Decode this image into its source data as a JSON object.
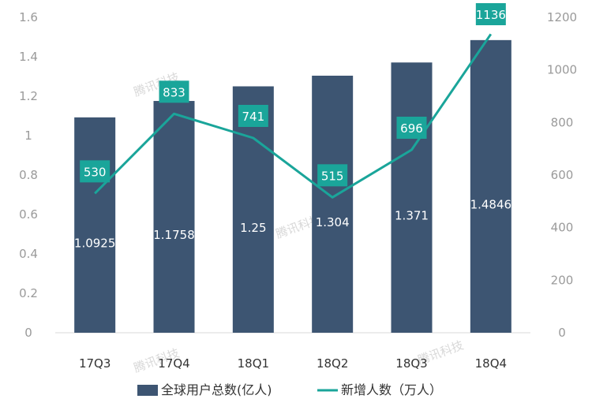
{
  "chart_data": {
    "type": "bar",
    "categories": [
      "17Q3",
      "17Q4",
      "18Q1",
      "18Q2",
      "18Q3",
      "18Q4"
    ],
    "series": [
      {
        "name": "全球用户总数(亿人)",
        "type": "bar",
        "axis": "left",
        "values": [
          1.0925,
          1.1758,
          1.25,
          1.304,
          1.371,
          1.4846
        ],
        "labels": [
          "1.0925",
          "1.1758",
          "1.25",
          "1.304",
          "1.371",
          "1.4846"
        ]
      },
      {
        "name": "新增人数（万人）",
        "type": "line",
        "axis": "right",
        "values": [
          530,
          833,
          741,
          515,
          696,
          1136
        ],
        "labels": [
          "530",
          "833",
          "741",
          "515",
          "696",
          "1136"
        ]
      }
    ],
    "y_left": {
      "ylim": [
        0,
        1.6
      ],
      "ticks": [
        "0",
        "0.2",
        "0.4",
        "0.6",
        "0.8",
        "1",
        "1.2",
        "1.4",
        "1.6"
      ]
    },
    "y_right": {
      "ylim": [
        0,
        1200
      ],
      "ticks": [
        "0",
        "200",
        "400",
        "600",
        "800",
        "1000",
        "1200"
      ]
    },
    "grid": false,
    "legend": "bottom",
    "colors": {
      "bar": "#3d5572",
      "line": "#1aa59a",
      "label_box": "#1aa59a"
    },
    "watermark": "腾讯科技"
  }
}
